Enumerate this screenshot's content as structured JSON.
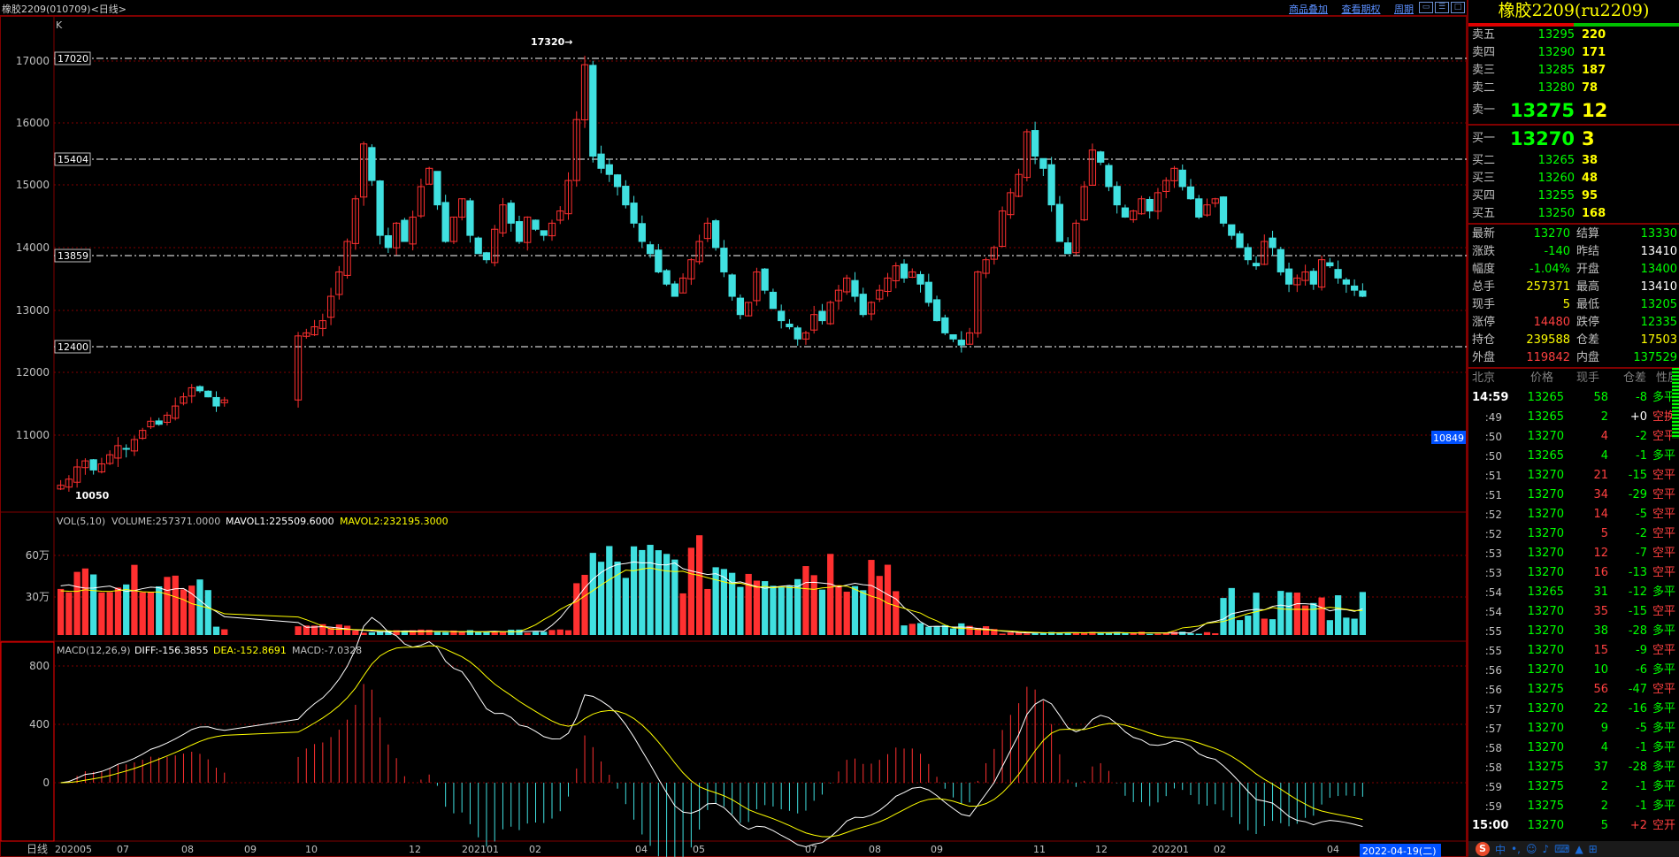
{
  "window": {
    "title": "橡胶2209(010709)<日线>",
    "links": [
      "商品叠加",
      "查看期权",
      "周期"
    ],
    "winbtn_icons": [
      "restore-icon",
      "tile-icon",
      "maximize-icon"
    ]
  },
  "main_chart": {
    "label": "K",
    "y_ticks": [
      "17000",
      "16000",
      "15000",
      "14000",
      "13000",
      "12000",
      "11000"
    ],
    "level_lines": [
      "17020",
      "15404",
      "13859",
      "12400"
    ],
    "annotations": {
      "high": "17320→",
      "low": "10050",
      "last_badge": "10849"
    }
  },
  "vol_panel": {
    "legend": {
      "name": "VOL(5,10)",
      "volume": "VOLUME:257371.0000",
      "mavol1": "MAVOL1:225509.6000",
      "mavol2": "MAVOL2:232195.3000"
    },
    "y_ticks": [
      "60万",
      "30万"
    ]
  },
  "macd_panel": {
    "legend": {
      "name": "MACD(12,26,9)",
      "diff": "DIFF:-156.3855",
      "dea": "DEA:-152.8691",
      "macd": "MACD:-7.0328"
    },
    "y_ticks": [
      "800",
      "400",
      "0"
    ]
  },
  "x_axis": {
    "period_label": "日线",
    "labels": [
      "202005",
      "07",
      "08",
      "09",
      "10",
      "12",
      "202101",
      "02",
      "04",
      "05",
      "07",
      "08",
      "09",
      "11",
      "12",
      "202201",
      "02",
      "04"
    ],
    "cursor_date": "2022-04-19(二)"
  },
  "colors": {
    "up": "#ff3030",
    "down": "#40e0e0",
    "ma1": "#ffffff",
    "ma2": "#ffff00",
    "level": "#ffffff",
    "frame": "#800000"
  },
  "chart_data": {
    "type": "candlestick",
    "price_range": [
      10050,
      17320
    ],
    "closes": [
      10200,
      10300,
      10500,
      10600,
      10450,
      10550,
      10700,
      10850,
      10800,
      10950,
      11100,
      11250,
      11200,
      11350,
      11500,
      11650,
      11800,
      11750,
      11650,
      11500,
      11600,
      12650,
      12700,
      12800,
      12900,
      13300,
      13700,
      14200,
      14900,
      15800,
      15200,
      14300,
      14100,
      14500,
      14200,
      14600,
      15100,
      15400,
      14800,
      14200,
      14600,
      14900,
      14300,
      14000,
      13900,
      14400,
      14800,
      14500,
      14200,
      14600,
      14400,
      14300,
      14500,
      14700,
      15200,
      16200,
      17100,
      15600,
      15400,
      15300,
      15100,
      14800,
      14500,
      14200,
      14000,
      13700,
      13500,
      13300,
      13600,
      13900,
      14200,
      14500,
      14100,
      13700,
      13300,
      13000,
      13200,
      13700,
      13400,
      13100,
      12900,
      12800,
      12600,
      12700,
      13000,
      12900,
      13200,
      13400,
      13600,
      13300,
      13000,
      13200,
      13400,
      13600,
      13800,
      13600,
      13700,
      13500,
      13200,
      12900,
      12700,
      12600,
      12500,
      12700,
      13700,
      13900,
      14100,
      14700,
      15000,
      15300,
      16000,
      15600,
      15400,
      14800,
      14200,
      14000,
      14500,
      15100,
      15700,
      15500,
      15100,
      14800,
      14600,
      14700,
      14900,
      14700,
      15000,
      15200,
      15400,
      15100,
      14900,
      14600,
      14800,
      14900,
      14500,
      14300,
      14100,
      13900,
      13800,
      14200,
      14100,
      13700,
      13500,
      13600,
      13700,
      13500,
      13900,
      13800,
      13600,
      13500,
      13400,
      13300
    ]
  }
}
